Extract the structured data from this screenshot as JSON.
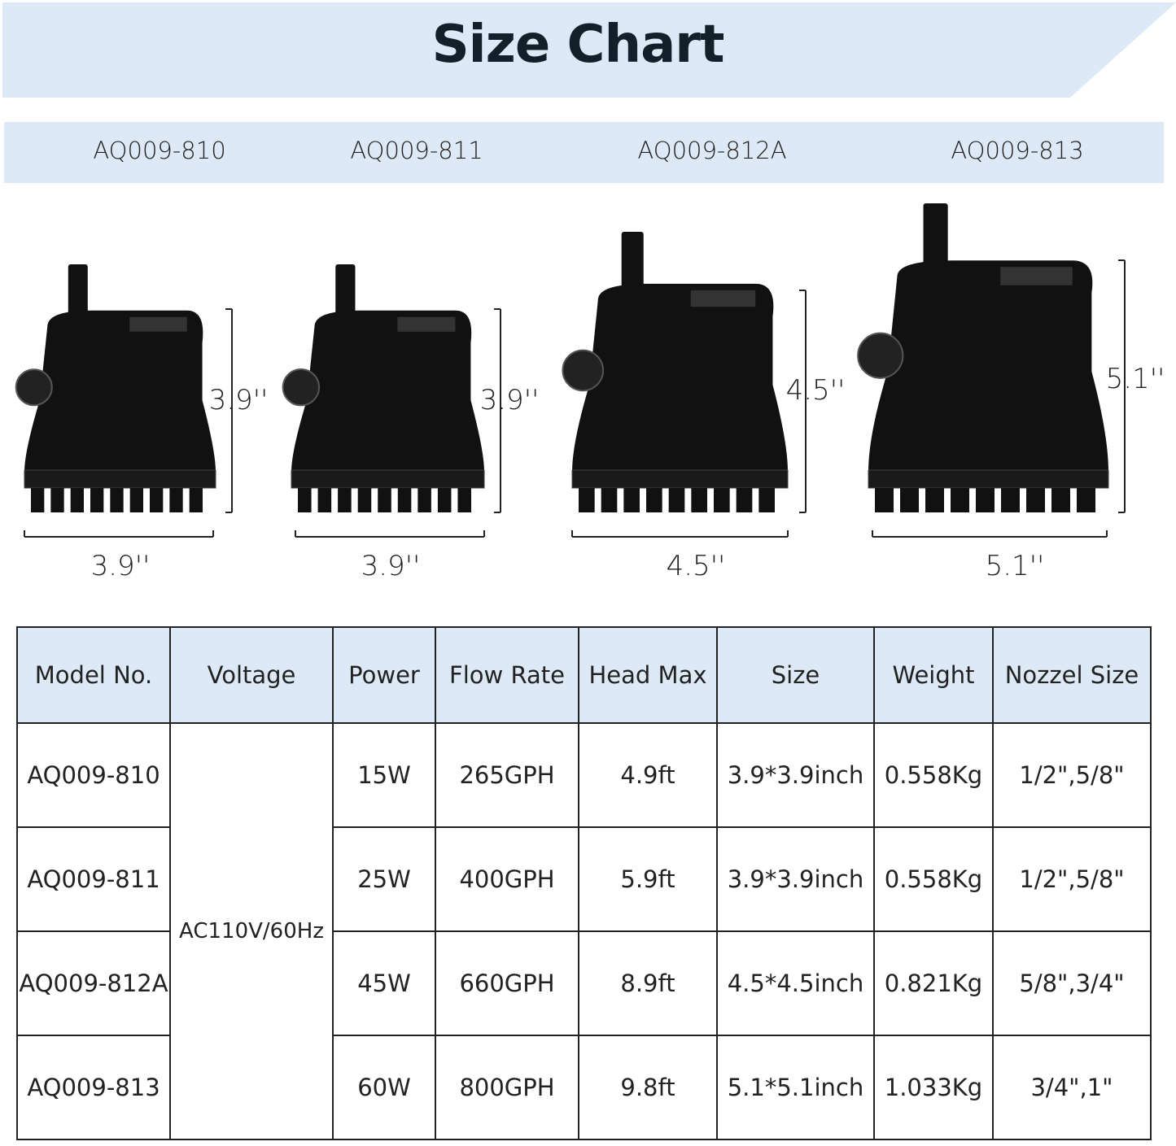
{
  "title": "Size Chart",
  "colors": {
    "banner": "#dde9f6",
    "header": "#dde9f6",
    "pump": "#111111"
  },
  "models": [
    "AQ009-810",
    "AQ009-811",
    "AQ009-812A",
    "AQ009-813"
  ],
  "pumps": [
    {
      "model": "AQ009-810",
      "height": "3.9''",
      "width": "3.9''"
    },
    {
      "model": "AQ009-811",
      "height": "3.9''",
      "width": "3.9''"
    },
    {
      "model": "AQ009-812A",
      "height": "4.5''",
      "width": "4.5''"
    },
    {
      "model": "AQ009-813",
      "height": "5.1''",
      "width": "5.1''"
    }
  ],
  "table": {
    "headers": [
      "Model No.",
      "Voltage",
      "Power",
      "Flow Rate",
      "Head Max",
      "Size",
      "Weight",
      "Nozzel Size"
    ],
    "voltage": "AC110V/60Hz",
    "rows": [
      {
        "model": "AQ009-810",
        "power": "15W",
        "flow": "265GPH",
        "head": "4.9ft",
        "size": "3.9*3.9inch",
        "weight": "0.558Kg",
        "nozzle": "1/2\",5/8\""
      },
      {
        "model": "AQ009-811",
        "power": "25W",
        "flow": "400GPH",
        "head": "5.9ft",
        "size": "3.9*3.9inch",
        "weight": "0.558Kg",
        "nozzle": "1/2\",5/8\""
      },
      {
        "model": "AQ009-812A",
        "power": "45W",
        "flow": "660GPH",
        "head": "8.9ft",
        "size": "4.5*4.5inch",
        "weight": "0.821Kg",
        "nozzle": "5/8\",3/4\""
      },
      {
        "model": "AQ009-813",
        "power": "60W",
        "flow": "800GPH",
        "head": "9.8ft",
        "size": "5.1*5.1inch",
        "weight": "1.033Kg",
        "nozzle": "3/4\",1\""
      }
    ]
  }
}
